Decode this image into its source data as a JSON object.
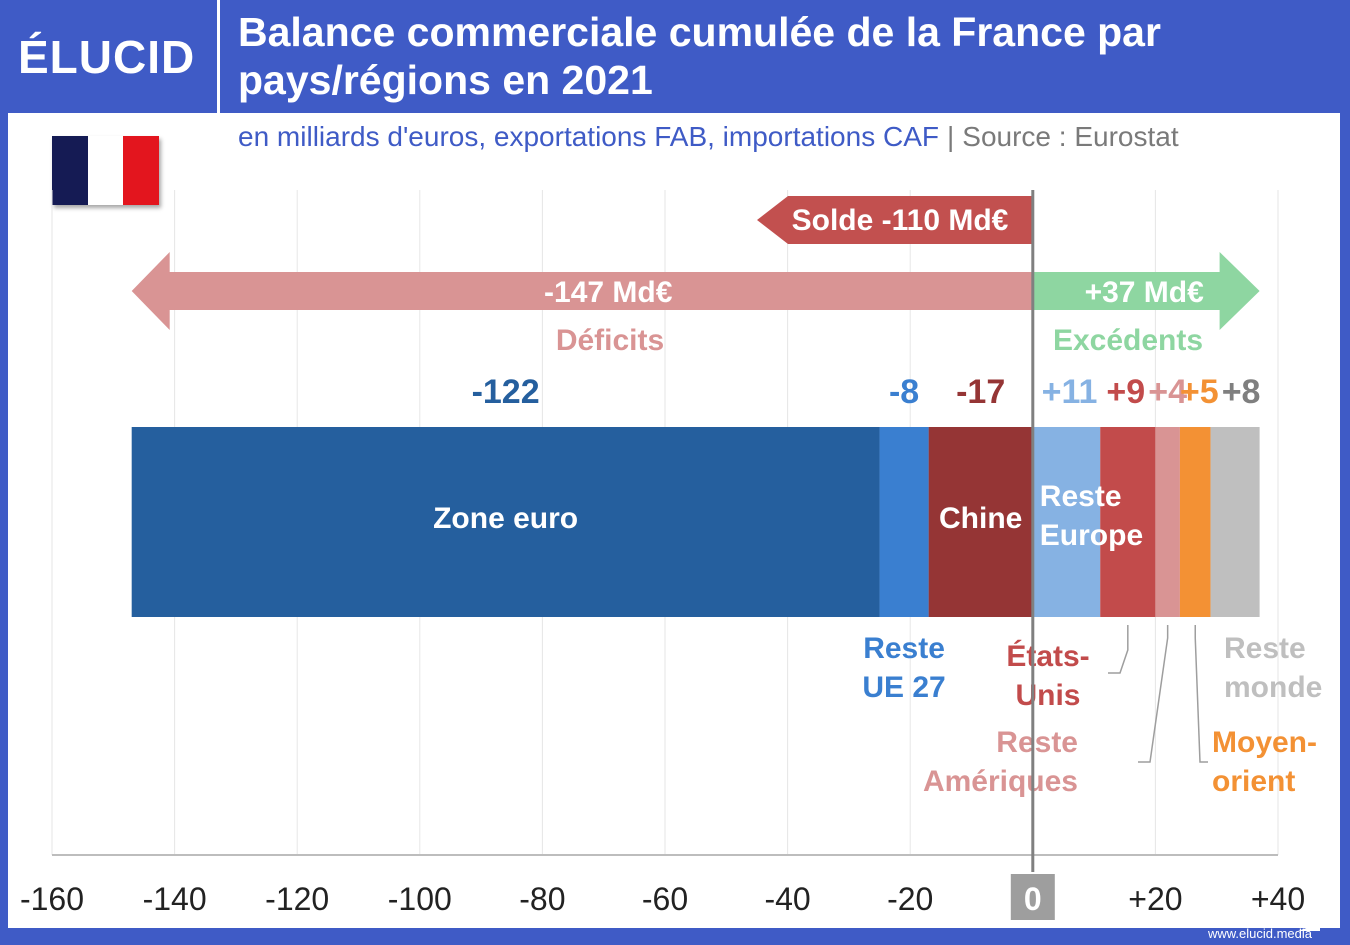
{
  "brand": {
    "logo": "ÉLUCID",
    "url": "www.elucid.media"
  },
  "header": {
    "title": "Balance commerciale cumulée de la France par pays/régions en 2021",
    "subtitle": "en milliards d'euros, exportations FAB, importations CAF",
    "separator": "|",
    "source": "Source : Eurostat"
  },
  "colors": {
    "background": "#3f5bc6",
    "flag_blue": "#151b54",
    "flag_white": "#ffffff",
    "flag_red": "#e3151e",
    "deficit_arrow": "#d99494",
    "surplus_arrow": "#8ed6a1",
    "solde_arrow": "#c2504f"
  },
  "chart_data": {
    "type": "bar",
    "orientation": "horizontal-stacked",
    "xlim": [
      -160,
      40
    ],
    "ticks": [
      -160,
      -140,
      -120,
      -100,
      -80,
      -60,
      -40,
      -20,
      0,
      20,
      40
    ],
    "tick_labels": [
      "-160",
      "-140",
      "-120",
      "-100",
      "-80",
      "-60",
      "-40",
      "-20",
      "0",
      "+20",
      "+40"
    ],
    "grid": true,
    "series": [
      {
        "name": "Chine",
        "value": -17,
        "label": "-17",
        "color": "#953535"
      },
      {
        "name": "Reste UE 27",
        "value": -8,
        "label": "-8",
        "color": "#3a7fd0"
      },
      {
        "name": "Zone euro",
        "value": -122,
        "label": "-122",
        "color": "#255f9e"
      },
      {
        "name": "Reste Europe",
        "value": 11,
        "label": "+11",
        "color": "#86b2e3"
      },
      {
        "name": "États-Unis",
        "value": 9,
        "label": "+9",
        "color": "#c24b4b"
      },
      {
        "name": "Reste Amériques",
        "value": 4,
        "label": "+4",
        "color": "#d99494"
      },
      {
        "name": "Moyen-orient",
        "value": 5,
        "label": "+5",
        "color": "#f39134"
      },
      {
        "name": "Reste monde",
        "value": 8,
        "label": "+8",
        "color": "#bfbfbf"
      }
    ],
    "annotations": {
      "solde": {
        "value": -110,
        "label": "Solde -110 Md€"
      },
      "deficits": {
        "value": -147,
        "label": "-147 Md€",
        "caption": "Déficits"
      },
      "excedents": {
        "value": 37,
        "label": "+37 Md€",
        "caption": "Excédents"
      }
    }
  }
}
